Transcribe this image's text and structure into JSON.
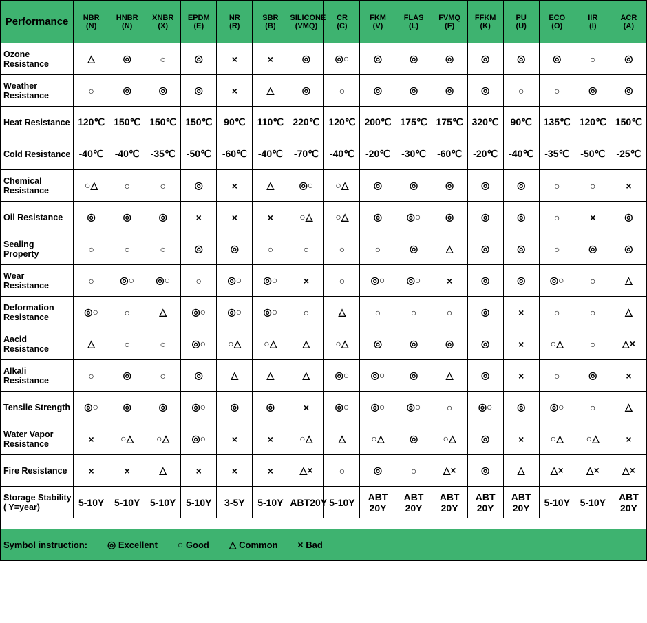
{
  "header_bg": "#3eb370",
  "performance_label": "Performance",
  "columns": [
    {
      "name": "NBR",
      "code": "(N)"
    },
    {
      "name": "HNBR",
      "code": "(N)"
    },
    {
      "name": "XNBR",
      "code": "(X)"
    },
    {
      "name": "EPDM",
      "code": "(E)"
    },
    {
      "name": "NR",
      "code": "(R)"
    },
    {
      "name": "SBR",
      "code": "(B)"
    },
    {
      "name": "SILICONE",
      "code": "(VMQ)"
    },
    {
      "name": "CR",
      "code": "(C)"
    },
    {
      "name": "FKM",
      "code": "(V)"
    },
    {
      "name": "FLAS",
      "code": "(L)"
    },
    {
      "name": "FVMQ",
      "code": "(F)"
    },
    {
      "name": "FFKM",
      "code": "(K)"
    },
    {
      "name": "PU",
      "code": "(U)"
    },
    {
      "name": "ECO",
      "code": "(O)"
    },
    {
      "name": "IIR",
      "code": "(I)"
    },
    {
      "name": "ACR",
      "code": "(A)"
    }
  ],
  "rows": [
    {
      "label": "Ozone Resistance",
      "cells": [
        "△",
        "◎",
        "○",
        "◎",
        "×",
        "×",
        "◎",
        "◎○",
        "◎",
        "◎",
        "◎",
        "◎",
        "◎",
        "◎",
        "○",
        "◎"
      ]
    },
    {
      "label": "Weather Resistance",
      "cells": [
        "○",
        "◎",
        "◎",
        "◎",
        "×",
        "△",
        "◎",
        "○",
        "◎",
        "◎",
        "◎",
        "◎",
        "○",
        "○",
        "◎",
        "◎"
      ]
    },
    {
      "label": "Heat Resistance",
      "cells": [
        "120℃",
        "150℃",
        "150℃",
        "150℃",
        "90℃",
        "110℃",
        "220℃",
        "120℃",
        "200℃",
        "175℃",
        "175℃",
        "320℃",
        "90℃",
        "135℃",
        "120℃",
        "150℃"
      ]
    },
    {
      "label": "Cold Resistance",
      "cells": [
        "-40℃",
        "-40℃",
        "-35℃",
        "-50℃",
        "-60℃",
        "-40℃",
        "-70℃",
        "-40℃",
        "-20℃",
        "-30℃",
        "-60℃",
        "-20℃",
        "-40℃",
        "-35℃",
        "-50℃",
        "-25℃"
      ]
    },
    {
      "label": "Chemical Resistance",
      "cells": [
        "○△",
        "○",
        "○",
        "◎",
        "×",
        "△",
        "◎○",
        "○△",
        "◎",
        "◎",
        "◎",
        "◎",
        "◎",
        "○",
        "○",
        "×"
      ]
    },
    {
      "label": "Oil Resistance",
      "cells": [
        "◎",
        "◎",
        "◎",
        "×",
        "×",
        "×",
        "○△",
        "○△",
        "◎",
        "◎○",
        "◎",
        "◎",
        "◎",
        "○",
        "×",
        "◎"
      ]
    },
    {
      "label": "Sealing Property",
      "cells": [
        "○",
        "○",
        "○",
        "◎",
        "◎",
        "○",
        "○",
        "○",
        "○",
        "◎",
        "△",
        "◎",
        "◎",
        "○",
        "◎",
        "◎"
      ]
    },
    {
      "label": "Wear Resistance",
      "cells": [
        "○",
        "◎○",
        "◎○",
        "○",
        "◎○",
        "◎○",
        "×",
        "○",
        "◎○",
        "◎○",
        "×",
        "◎",
        "◎",
        "◎○",
        "○",
        "△"
      ]
    },
    {
      "label": "Deformation Resistance",
      "cells": [
        "◎○",
        "○",
        "△",
        "◎○",
        "◎○",
        "◎○",
        "○",
        "△",
        "○",
        "○",
        "○",
        "◎",
        "×",
        "○",
        "○",
        "△"
      ]
    },
    {
      "label": "Aacid Resistance",
      "cells": [
        "△",
        "○",
        "○",
        "◎○",
        "○△",
        "○△",
        "△",
        "○△",
        "◎",
        "◎",
        "◎",
        "◎",
        "×",
        "○△",
        "○",
        "△×"
      ]
    },
    {
      "label": "Alkali Resistance",
      "cells": [
        "○",
        "◎",
        "○",
        "◎",
        "△",
        "△",
        "△",
        "◎○",
        "◎○",
        "◎",
        "△",
        "◎",
        "×",
        "○",
        "◎",
        "×"
      ]
    },
    {
      "label": "Tensile Strength",
      "cells": [
        "◎○",
        "◎",
        "◎",
        "◎○",
        "◎",
        "◎",
        "×",
        "◎○",
        "◎○",
        "◎○",
        "○",
        "◎○",
        "◎",
        "◎○",
        "○",
        "△"
      ]
    },
    {
      "label": "Water Vapor Resistance",
      "cells": [
        "×",
        "○△",
        "○△",
        "◎○",
        "×",
        "×",
        "○△",
        "△",
        "○△",
        "◎",
        "○△",
        "◎",
        "×",
        "○△",
        "○△",
        "×"
      ]
    },
    {
      "label": "Fire Resistance",
      "cells": [
        "×",
        "×",
        "△",
        "×",
        "×",
        "×",
        "△×",
        "○",
        "◎",
        "○",
        "△×",
        "◎",
        "△",
        "△×",
        "△×",
        "△×"
      ]
    },
    {
      "label": "Storage Stability ( Y=year)",
      "cells": [
        "5-10Y",
        "5-10Y",
        "5-10Y",
        "5-10Y",
        "3-5Y",
        "5-10Y",
        "ABT20Y",
        "5-10Y",
        "ABT 20Y",
        "ABT 20Y",
        "ABT 20Y",
        "ABT 20Y",
        "ABT 20Y",
        "5-10Y",
        "5-10Y",
        "ABT 20Y"
      ]
    }
  ],
  "legend": {
    "label": "Symbol instruction:",
    "items": [
      {
        "sym": "◎",
        "text": "Excellent"
      },
      {
        "sym": "○",
        "text": "Good"
      },
      {
        "sym": "△",
        "text": "Common"
      },
      {
        "sym": "×",
        "text": "Bad"
      }
    ]
  }
}
